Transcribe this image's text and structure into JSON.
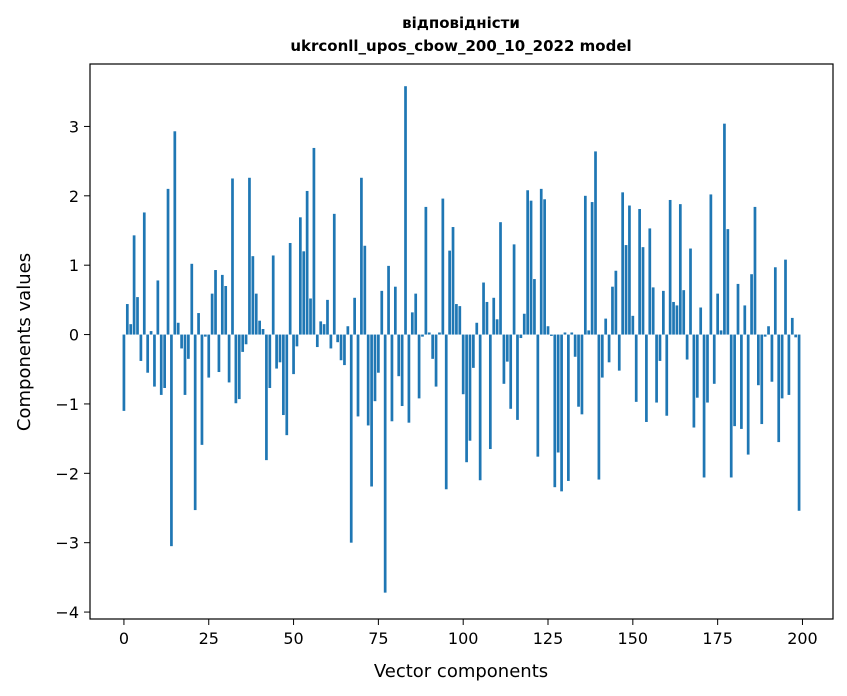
{
  "chart_data": {
    "type": "bar",
    "title_line1": "відповідністи",
    "title_line2": "ukrconll_upos_cbow_200_10_2022 model",
    "xlabel": "Vector components",
    "ylabel": "Components values",
    "xlim": [
      -10,
      209
    ],
    "ylim": [
      -4.1,
      3.9
    ],
    "xticks": [
      0,
      25,
      50,
      75,
      100,
      125,
      150,
      175,
      200
    ],
    "yticks": [
      -4,
      -3,
      -2,
      -1,
      0,
      1,
      2,
      3
    ],
    "grid": false,
    "bar_color": "#1f77b4",
    "values": [
      -1.1,
      0.44,
      0.15,
      1.43,
      0.54,
      -0.38,
      1.76,
      -0.55,
      0.05,
      -0.75,
      0.78,
      -0.87,
      -0.77,
      2.1,
      -3.05,
      2.93,
      0.17,
      -0.2,
      -0.87,
      -0.35,
      1.02,
      -2.53,
      0.31,
      -1.59,
      -0.03,
      -0.62,
      0.59,
      0.93,
      -0.54,
      0.86,
      0.7,
      -0.69,
      2.25,
      -0.99,
      -0.93,
      -0.25,
      -0.14,
      2.26,
      1.13,
      0.59,
      0.2,
      0.08,
      -1.81,
      -0.77,
      1.14,
      -0.49,
      -0.4,
      -1.16,
      -1.45,
      1.32,
      -0.57,
      -0.17,
      1.69,
      1.2,
      2.07,
      0.52,
      2.69,
      -0.18,
      0.19,
      0.15,
      0.5,
      -0.2,
      1.74,
      -0.11,
      -0.37,
      -0.44,
      0.12,
      -3.0,
      0.53,
      -1.18,
      2.26,
      1.28,
      -1.31,
      -2.19,
      -0.96,
      -0.55,
      0.63,
      -3.72,
      0.99,
      -1.25,
      0.69,
      -0.6,
      -1.03,
      3.58,
      -1.27,
      0.32,
      0.59,
      -0.92,
      -0.03,
      1.84,
      0.03,
      -0.35,
      -0.75,
      0.03,
      1.96,
      -2.23,
      1.21,
      1.55,
      0.44,
      0.41,
      -0.86,
      -1.84,
      -1.53,
      -0.48,
      0.17,
      -2.1,
      0.75,
      0.47,
      -1.65,
      0.53,
      0.22,
      1.62,
      -0.71,
      -0.39,
      -1.07,
      1.3,
      -1.23,
      -0.05,
      0.3,
      2.08,
      1.93,
      0.8,
      -1.76,
      2.1,
      1.95,
      0.12,
      -0.02,
      -2.2,
      -1.7,
      -2.26,
      0.03,
      -2.11,
      0.03,
      -0.32,
      -1.04,
      -1.15,
      2.0,
      0.06,
      1.91,
      2.64,
      -2.09,
      -0.62,
      0.23,
      -0.4,
      0.69,
      0.92,
      -0.52,
      2.05,
      1.29,
      1.86,
      0.27,
      -0.97,
      1.81,
      1.26,
      -1.26,
      1.53,
      0.68,
      -0.98,
      -0.38,
      0.63,
      -1.17,
      1.94,
      0.47,
      0.42,
      1.88,
      0.64,
      -0.36,
      1.24,
      -1.34,
      -0.91,
      0.39,
      -2.06,
      -0.98,
      2.02,
      -0.71,
      0.59,
      0.06,
      3.04,
      1.52,
      -2.06,
      -1.32,
      0.73,
      -1.36,
      0.42,
      -1.73,
      0.87,
      1.84,
      -0.73,
      -1.29,
      -0.03,
      0.12,
      -0.68,
      0.97,
      -1.55,
      -0.92,
      1.08,
      -0.87,
      0.24,
      -0.04,
      -2.54
    ]
  }
}
